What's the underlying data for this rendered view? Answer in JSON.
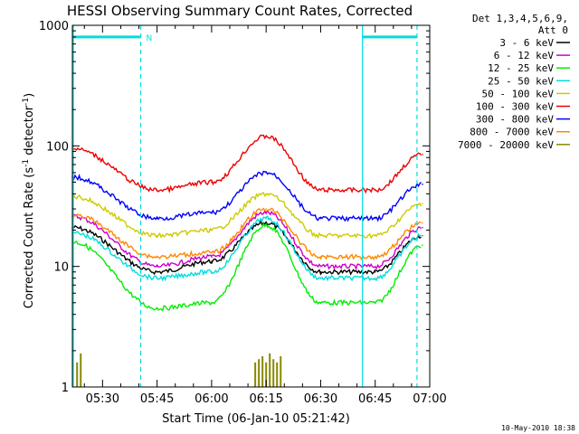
{
  "chart_data": {
    "type": "line",
    "title": "HESSI Observing Summary Count Rates, Corrected",
    "ylabel_main": "Corrected Count Rate (s",
    "ylabel_sup1": "-1",
    "ylabel_mid": " detector",
    "ylabel_sup2": "-1",
    "ylabel_end": ")",
    "xlabel": "Start Time (06-Jan-10 05:21:42)",
    "y_scale": "log",
    "ylim": [
      1,
      1000
    ],
    "x_start": "05:21:42",
    "x_end": "07:00:00",
    "y_ticks": [
      {
        "value": 1,
        "label": "1"
      },
      {
        "value": 10,
        "label": "10"
      },
      {
        "value": 100,
        "label": "100"
      },
      {
        "value": 1000,
        "label": "1000"
      }
    ],
    "x_ticks": [
      {
        "time": "05:30",
        "label": "05:30"
      },
      {
        "time": "05:45",
        "label": "05:45"
      },
      {
        "time": "06:00",
        "label": "06:00"
      },
      {
        "time": "06:15",
        "label": "06:15"
      },
      {
        "time": "06:30",
        "label": "06:30"
      },
      {
        "time": "06:45",
        "label": "06:45"
      },
      {
        "time": "07:00",
        "label": "07:00"
      }
    ],
    "legend_header": [
      "Det 1,3,4,5,6,9,",
      "Att 0"
    ],
    "legend_placement": "right",
    "series": [
      {
        "name": "3 - 6 keV",
        "color": "#000000",
        "x": [
          "05:21:42",
          "05:45",
          "06:00",
          "06:15",
          "06:30",
          "06:45",
          "06:58"
        ],
        "y": [
          21,
          9,
          11,
          23,
          9,
          9,
          18
        ]
      },
      {
        "name": "6 - 12 keV",
        "color": "#cc00cc",
        "x": [
          "05:21:42",
          "05:45",
          "06:00",
          "06:15",
          "06:30",
          "06:45",
          "06:58"
        ],
        "y": [
          26,
          10,
          12,
          28,
          10,
          10,
          21
        ]
      },
      {
        "name": "12 - 25 keV",
        "color": "#00ee00",
        "x": [
          "05:21:42",
          "05:45",
          "06:00",
          "06:15",
          "06:30",
          "06:45",
          "06:58"
        ],
        "y": [
          16,
          4.5,
          5,
          22,
          5,
          5,
          15
        ]
      },
      {
        "name": "25 - 50 keV",
        "color": "#00dddd",
        "x": [
          "05:21:42",
          "05:45",
          "06:00",
          "06:15",
          "06:30",
          "06:45",
          "06:58"
        ],
        "y": [
          19,
          8,
          9,
          25,
          8,
          8,
          18
        ]
      },
      {
        "name": "50 - 100 keV",
        "color": "#cccc00",
        "x": [
          "05:21:42",
          "05:45",
          "06:00",
          "06:15",
          "06:30",
          "06:45",
          "06:58"
        ],
        "y": [
          38,
          18,
          20,
          40,
          18,
          18,
          33
        ]
      },
      {
        "name": "100 - 300 keV",
        "color": "#ee0000",
        "x": [
          "05:21:42",
          "05:45",
          "06:00",
          "06:15",
          "06:30",
          "06:45",
          "06:58"
        ],
        "y": [
          95,
          43,
          50,
          120,
          43,
          43,
          85
        ]
      },
      {
        "name": "300 - 800 keV",
        "color": "#0000ff",
        "x": [
          "05:21:42",
          "05:45",
          "06:00",
          "06:15",
          "06:30",
          "06:45",
          "06:58"
        ],
        "y": [
          55,
          25,
          28,
          60,
          25,
          25,
          48
        ]
      },
      {
        "name": "800 - 7000 keV",
        "color": "#ff8800",
        "x": [
          "05:21:42",
          "05:45",
          "06:00",
          "06:15",
          "06:30",
          "06:45",
          "06:58"
        ],
        "y": [
          27,
          12,
          13,
          30,
          12,
          12,
          23
        ]
      },
      {
        "name": "7000 - 20000 keV",
        "color": "#888800",
        "x": [
          "05:23",
          "05:24",
          "06:12",
          "06:13",
          "06:14",
          "06:15",
          "06:16",
          "06:17",
          "06:18",
          "06:19"
        ],
        "y": [
          1.6,
          1.9,
          1.6,
          1.7,
          1.8,
          1.6,
          1.9,
          1.7,
          1.6,
          1.8
        ]
      }
    ],
    "markers": {
      "color": "#00dddd",
      "solid_lines": [
        "05:21:42",
        "06:41:30"
      ],
      "dashed_lines": [
        "05:40:30",
        "06:56:30"
      ],
      "bars": [
        {
          "start": "05:21:42",
          "end": "05:40:30",
          "y": 800
        },
        {
          "start": "06:41:30",
          "end": "06:56:30",
          "y": 800
        }
      ],
      "bar_label": {
        "text": "N",
        "time": "05:41",
        "y": 800
      }
    },
    "footer_date": "10-May-2010 18:38"
  }
}
